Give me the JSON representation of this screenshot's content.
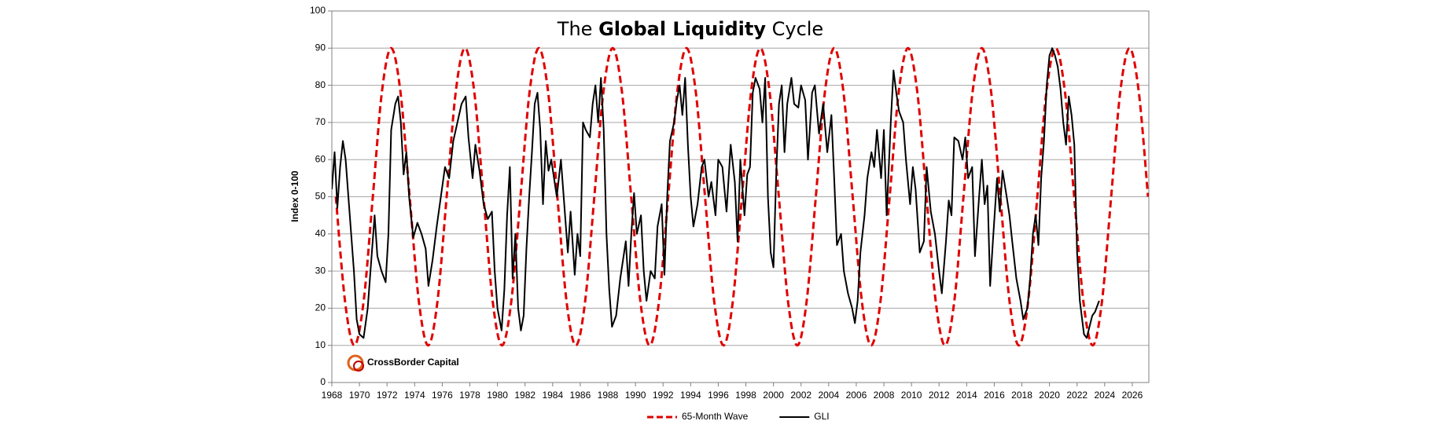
{
  "chart_data": {
    "type": "line",
    "title_parts": [
      "The",
      "Global Liquidity",
      "Cycle"
    ],
    "ylabel": "Index 0-100",
    "logo": "CrossBorder Capital",
    "xlim": [
      1968,
      2027.2
    ],
    "xticks": [
      1968,
      1970,
      1972,
      1974,
      1976,
      1978,
      1980,
      1982,
      1984,
      1986,
      1988,
      1990,
      1992,
      1994,
      1996,
      1998,
      2000,
      2002,
      2004,
      2006,
      2008,
      2010,
      2012,
      2014,
      2016,
      2018,
      2020,
      2022,
      2024,
      2026
    ],
    "ylim": [
      0,
      100
    ],
    "yticks": [
      0,
      10,
      20,
      30,
      40,
      50,
      60,
      70,
      80,
      90,
      100
    ],
    "grid": true,
    "legend": "bottom",
    "series": [
      {
        "name": "65-Month Wave",
        "color": "#e00000",
        "dashed": true,
        "smooth": true,
        "x": [
          1968.29,
          1968.96,
          1969.63,
          1970.3,
          1970.97,
          1971.63,
          1972.3,
          1972.97,
          1973.64,
          1974.31,
          1974.98,
          1975.65,
          1976.32,
          1976.98,
          1977.65,
          1978.32,
          1978.99,
          1979.66,
          1980.33,
          1981.0,
          1981.67,
          1982.33,
          1983.0,
          1983.67,
          1984.34,
          1985.01,
          1985.68,
          1986.35,
          1987.02,
          1987.68,
          1988.35,
          1989.02,
          1989.69,
          1990.36,
          1991.03,
          1991.7,
          1992.37,
          1993.03,
          1993.7,
          1994.37,
          1995.04,
          1995.71,
          1996.38,
          1997.05,
          1997.72,
          1998.38,
          1999.05,
          1999.72,
          2000.39,
          2001.06,
          2001.73,
          2002.4,
          2003.07,
          2003.73,
          2004.4,
          2005.07,
          2005.74,
          2006.41,
          2007.08,
          2007.75,
          2008.42,
          2009.08,
          2009.75,
          2010.42,
          2011.09,
          2011.76,
          2012.43,
          2013.1,
          2013.77,
          2014.43,
          2015.1,
          2015.77,
          2016.44,
          2017.11,
          2017.78,
          2018.45,
          2019.12,
          2019.78,
          2020.45,
          2021.12,
          2021.79,
          2022.46,
          2023.13,
          2023.8,
          2024.47,
          2025.13,
          2025.8,
          2026.47,
          2027.14
        ],
        "values": [
          50,
          21.72,
          10,
          21.72,
          50,
          78.28,
          90,
          78.28,
          50,
          21.72,
          10,
          21.72,
          50,
          78.28,
          90,
          78.28,
          50,
          21.72,
          10,
          21.72,
          50,
          78.28,
          90,
          78.28,
          50,
          21.72,
          10,
          21.72,
          50,
          78.28,
          90,
          78.28,
          50,
          21.72,
          10,
          21.72,
          50,
          78.28,
          90,
          78.28,
          50,
          21.72,
          10,
          21.72,
          50,
          78.28,
          90,
          78.28,
          50,
          21.72,
          10,
          21.72,
          50,
          78.28,
          90,
          78.28,
          50,
          21.72,
          10,
          21.72,
          50,
          78.28,
          90,
          78.28,
          50,
          21.72,
          10,
          21.72,
          50,
          78.28,
          90,
          78.28,
          50,
          21.72,
          10,
          21.72,
          50,
          78.28,
          90,
          78.28,
          50,
          21.72,
          10,
          21.72,
          50,
          78.28,
          90,
          78.28,
          50
        ]
      },
      {
        "name": "GLI",
        "color": "#000000",
        "dashed": false,
        "smooth": false,
        "x": [
          1968.0,
          1968.2,
          1968.4,
          1968.6,
          1968.8,
          1969.0,
          1969.3,
          1969.6,
          1969.8,
          1970.0,
          1970.3,
          1970.6,
          1970.9,
          1971.1,
          1971.3,
          1971.6,
          1971.9,
          1972.1,
          1972.3,
          1972.6,
          1972.8,
          1973.0,
          1973.2,
          1973.4,
          1973.6,
          1973.9,
          1974.2,
          1974.5,
          1974.8,
          1975.0,
          1975.3,
          1975.6,
          1975.9,
          1976.2,
          1976.5,
          1976.8,
          1977.1,
          1977.4,
          1977.7,
          1977.9,
          1978.2,
          1978.4,
          1978.7,
          1979.0,
          1979.3,
          1979.6,
          1979.8,
          1980.0,
          1980.3,
          1980.5,
          1980.7,
          1980.9,
          1981.1,
          1981.3,
          1981.5,
          1981.7,
          1981.9,
          1982.1,
          1982.3,
          1982.5,
          1982.7,
          1982.9,
          1983.1,
          1983.3,
          1983.5,
          1983.7,
          1983.9,
          1984.1,
          1984.3,
          1984.6,
          1984.9,
          1985.1,
          1985.3,
          1985.6,
          1985.8,
          1986.0,
          1986.2,
          1986.4,
          1986.7,
          1986.9,
          1987.1,
          1987.3,
          1987.5,
          1987.7,
          1987.9,
          1988.1,
          1988.3,
          1988.6,
          1988.9,
          1989.1,
          1989.3,
          1989.5,
          1989.7,
          1989.9,
          1990.1,
          1990.4,
          1990.6,
          1990.8,
          1991.1,
          1991.4,
          1991.6,
          1991.9,
          1992.1,
          1992.3,
          1992.5,
          1992.8,
          1993.0,
          1993.2,
          1993.4,
          1993.6,
          1993.8,
          1994.0,
          1994.2,
          1994.5,
          1994.8,
          1995.0,
          1995.3,
          1995.5,
          1995.8,
          1996.0,
          1996.3,
          1996.6,
          1996.9,
          1997.2,
          1997.4,
          1997.6,
          1997.9,
          1998.1,
          1998.3,
          1998.5,
          1998.7,
          1999.0,
          1999.2,
          1999.4,
          1999.6,
          1999.8,
          2000.0,
          2000.2,
          2000.4,
          2000.6,
          2000.8,
          2001.0,
          2001.3,
          2001.5,
          2001.8,
          2002.0,
          2002.3,
          2002.5,
          2002.8,
          2003.0,
          2003.3,
          2003.6,
          2003.9,
          2004.2,
          2004.4,
          2004.6,
          2004.9,
          2005.1,
          2005.4,
          2005.7,
          2005.9,
          2006.1,
          2006.3,
          2006.6,
          2006.8,
          2007.1,
          2007.3,
          2007.5,
          2007.8,
          2008.0,
          2008.2,
          2008.5,
          2008.7,
          2008.9,
          2009.1,
          2009.4,
          2009.6,
          2009.9,
          2010.1,
          2010.3,
          2010.6,
          2010.9,
          2011.1,
          2011.4,
          2011.7,
          2012.0,
          2012.2,
          2012.5,
          2012.7,
          2012.9,
          2013.1,
          2013.4,
          2013.7,
          2013.9,
          2014.1,
          2014.4,
          2014.6,
          2014.9,
          2015.1,
          2015.3,
          2015.5,
          2015.7,
          2015.9,
          2016.2,
          2016.4,
          2016.6,
          2016.9,
          2017.1,
          2017.3,
          2017.6,
          2017.9,
          2018.1,
          2018.4,
          2018.6,
          2018.8,
          2019.0,
          2019.2,
          2019.4,
          2019.6,
          2019.8,
          2020.0,
          2020.2,
          2020.4,
          2020.6,
          2020.8,
          2021.0,
          2021.2,
          2021.4,
          2021.6,
          2021.8,
          2022.0,
          2022.2,
          2022.5,
          2022.7,
          2022.9,
          2023.1,
          2023.3,
          2023.6
        ],
        "values": [
          52,
          62,
          47,
          58,
          65,
          60,
          45,
          30,
          17,
          13,
          12,
          20,
          35,
          45,
          34,
          30,
          27,
          40,
          68,
          75,
          77,
          70,
          56,
          62,
          50,
          39,
          43,
          40,
          36,
          26,
          33,
          42,
          50,
          58,
          55,
          65,
          70,
          75,
          77,
          66,
          55,
          64,
          57,
          48,
          44,
          46,
          30,
          20,
          14,
          25,
          45,
          58,
          28,
          40,
          20,
          14,
          18,
          36,
          50,
          62,
          75,
          78,
          68,
          48,
          65,
          57,
          60,
          55,
          50,
          60,
          45,
          35,
          46,
          29,
          40,
          34,
          70,
          68,
          66,
          75,
          80,
          70,
          82,
          68,
          40,
          25,
          15,
          18,
          28,
          33,
          38,
          26,
          40,
          51,
          40,
          45,
          30,
          22,
          30,
          28,
          42,
          48,
          29,
          50,
          65,
          70,
          76,
          80,
          72,
          82,
          64,
          50,
          42,
          48,
          58,
          60,
          50,
          54,
          45,
          60,
          58,
          46,
          64,
          54,
          38,
          60,
          45,
          56,
          58,
          78,
          82,
          79,
          70,
          82,
          50,
          35,
          31,
          56,
          75,
          80,
          62,
          75,
          82,
          75,
          74,
          80,
          76,
          60,
          78,
          80,
          67,
          75,
          62,
          72,
          55,
          37,
          40,
          30,
          24,
          20,
          16,
          22,
          35,
          45,
          55,
          62,
          58,
          68,
          55,
          68,
          45,
          70,
          84,
          78,
          73,
          70,
          60,
          48,
          58,
          52,
          35,
          38,
          58,
          46,
          40,
          30,
          24,
          38,
          49,
          45,
          66,
          65,
          60,
          66,
          55,
          58,
          34,
          50,
          60,
          48,
          53,
          26,
          38,
          55,
          46,
          57,
          50,
          45,
          38,
          28,
          22,
          17,
          20,
          28,
          40,
          45,
          37,
          55,
          65,
          80,
          88,
          90,
          88,
          85,
          79,
          70,
          64,
          77,
          72,
          64,
          35,
          22,
          13,
          12,
          15,
          18,
          19,
          22
        ]
      }
    ]
  }
}
